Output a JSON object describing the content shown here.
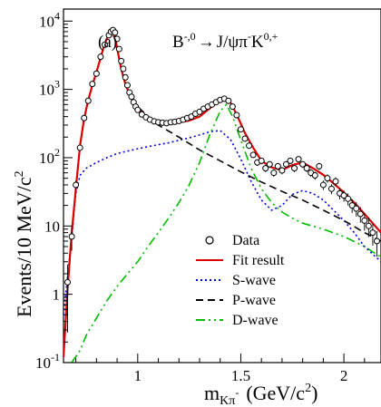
{
  "chart_data": {
    "type": "line",
    "panel_label": "(a)",
    "title_parts": {
      "main": "B",
      "sup1": "-,0",
      "arrow": "→",
      "mid": "J/ψπ",
      "sup2": "-",
      "end": "K",
      "sup3": "0,+"
    },
    "xlabel": {
      "main": "m",
      "sub": "Kπ",
      "subsup": "-",
      "unit": "(GeV/c",
      "unitsup": "2",
      "close": ")"
    },
    "ylabel": {
      "main": "Events/10 MeV/c",
      "sup": "2"
    },
    "xlim": [
      0.64,
      2.18
    ],
    "ylim": [
      0.1,
      15000
    ],
    "y_scale": "log",
    "x_ticks": [
      {
        "v": 1,
        "label": "1"
      },
      {
        "v": 1.5,
        "label": "1.5"
      },
      {
        "v": 2,
        "label": "2"
      }
    ],
    "y_ticks": [
      {
        "v": 0.1,
        "base": "10",
        "exp": "-1"
      },
      {
        "v": 1,
        "base": "1",
        "exp": ""
      },
      {
        "v": 10,
        "base": "10",
        "exp": ""
      },
      {
        "v": 100,
        "base": "10",
        "exp": "2"
      },
      {
        "v": 1000,
        "base": "10",
        "exp": "3"
      },
      {
        "v": 10000,
        "base": "10",
        "exp": "4"
      }
    ],
    "legend": [
      {
        "label": "Data",
        "style": "marker"
      },
      {
        "label": "Fit result",
        "color": "#dd0000",
        "dash": ""
      },
      {
        "label": "S-wave",
        "color": "#0000dd",
        "dash": "2,3"
      },
      {
        "label": "P-wave",
        "color": "#000000",
        "dash": "8,5"
      },
      {
        "label": "D-wave",
        "color": "#00bb00",
        "dash": "10,4,2,4,2,4"
      }
    ],
    "legend_position": "lower-center",
    "series": [
      {
        "name": "Fit result",
        "color": "#dd0000",
        "x": [
          0.64,
          0.66,
          0.68,
          0.7,
          0.72,
          0.74,
          0.76,
          0.78,
          0.8,
          0.82,
          0.84,
          0.86,
          0.88,
          0.89,
          0.9,
          0.92,
          0.94,
          0.96,
          1.0,
          1.05,
          1.1,
          1.15,
          1.2,
          1.25,
          1.3,
          1.35,
          1.38,
          1.41,
          1.43,
          1.45,
          1.48,
          1.52,
          1.56,
          1.6,
          1.65,
          1.7,
          1.75,
          1.8,
          1.85,
          1.9,
          1.95,
          2.0,
          2.05,
          2.1,
          2.18
        ],
        "y": [
          0.12,
          1.2,
          8,
          35,
          150,
          370,
          700,
          1150,
          1800,
          2900,
          4700,
          6500,
          6800,
          6000,
          4000,
          2000,
          1200,
          850,
          520,
          380,
          340,
          320,
          330,
          350,
          400,
          530,
          630,
          720,
          720,
          640,
          430,
          230,
          140,
          90,
          72,
          66,
          78,
          85,
          70,
          56,
          42,
          31,
          22,
          15,
          8
        ]
      },
      {
        "name": "S-wave",
        "color": "#0000dd",
        "x": [
          0.64,
          0.68,
          0.7,
          0.72,
          0.75,
          0.8,
          0.85,
          0.9,
          0.95,
          1.0,
          1.05,
          1.1,
          1.15,
          1.2,
          1.25,
          1.3,
          1.35,
          1.4,
          1.45,
          1.5,
          1.55,
          1.6,
          1.65,
          1.7,
          1.75,
          1.8,
          1.85,
          1.9,
          1.95,
          2.0,
          2.05,
          2.1,
          2.18
        ],
        "y": [
          0.5,
          7,
          30,
          55,
          70,
          85,
          100,
          115,
          125,
          135,
          145,
          155,
          165,
          180,
          195,
          215,
          240,
          250,
          185,
          95,
          45,
          24,
          17,
          20,
          29,
          33,
          30,
          24,
          17,
          12,
          8,
          5,
          3
        ]
      },
      {
        "name": "P-wave",
        "color": "#000000",
        "x": [
          0.64,
          0.66,
          0.68,
          0.7,
          0.72,
          0.74,
          0.76,
          0.78,
          0.8,
          0.82,
          0.84,
          0.86,
          0.88,
          0.89,
          0.9,
          0.92,
          0.94,
          0.96,
          1.0,
          1.05,
          1.1,
          1.2,
          1.3,
          1.4,
          1.5,
          1.6,
          1.7,
          1.8,
          1.9,
          2.0,
          2.1,
          2.18
        ],
        "y": [
          0.12,
          1.2,
          8,
          35,
          150,
          370,
          700,
          1150,
          1800,
          2900,
          4700,
          6500,
          6800,
          6000,
          4000,
          2000,
          1200,
          850,
          560,
          400,
          300,
          200,
          130,
          90,
          62,
          44,
          32,
          24,
          17,
          12,
          8,
          6
        ]
      },
      {
        "name": "D-wave",
        "color": "#00bb00",
        "x": [
          0.68,
          0.72,
          0.75,
          0.8,
          0.85,
          0.9,
          0.95,
          1.0,
          1.05,
          1.1,
          1.15,
          1.2,
          1.25,
          1.3,
          1.35,
          1.4,
          1.43,
          1.46,
          1.5,
          1.55,
          1.6,
          1.65,
          1.7,
          1.75,
          1.8,
          1.9,
          2.0,
          2.1,
          2.18
        ],
        "y": [
          0.1,
          0.15,
          0.25,
          0.45,
          0.8,
          1.3,
          2,
          3,
          5,
          8,
          13,
          22,
          40,
          85,
          220,
          480,
          600,
          400,
          180,
          70,
          35,
          22,
          16,
          13,
          11,
          9,
          7,
          5,
          3.5
        ]
      }
    ],
    "data_points": {
      "name": "Data",
      "x": [
        0.66,
        0.68,
        0.7,
        0.72,
        0.74,
        0.76,
        0.78,
        0.8,
        0.82,
        0.84,
        0.86,
        0.87,
        0.88,
        0.89,
        0.9,
        0.91,
        0.92,
        0.93,
        0.94,
        0.95,
        0.96,
        0.97,
        0.98,
        0.99,
        1.0,
        1.02,
        1.04,
        1.06,
        1.08,
        1.1,
        1.12,
        1.14,
        1.16,
        1.18,
        1.2,
        1.22,
        1.24,
        1.26,
        1.28,
        1.3,
        1.32,
        1.34,
        1.36,
        1.38,
        1.4,
        1.42,
        1.44,
        1.46,
        1.48,
        1.5,
        1.52,
        1.54,
        1.56,
        1.58,
        1.6,
        1.62,
        1.64,
        1.66,
        1.68,
        1.7,
        1.72,
        1.74,
        1.76,
        1.78,
        1.8,
        1.82,
        1.84,
        1.86,
        1.88,
        1.9,
        1.92,
        1.94,
        1.96,
        1.98,
        2.0,
        2.02,
        2.04,
        2.06,
        2.08,
        2.1,
        2.12,
        2.14,
        2.16
      ],
      "y": [
        1.5,
        7,
        40,
        140,
        380,
        680,
        1200,
        1700,
        3000,
        4500,
        6200,
        7000,
        7400,
        6800,
        5500,
        3900,
        2600,
        2000,
        1500,
        1150,
        900,
        780,
        650,
        560,
        500,
        430,
        390,
        360,
        340,
        330,
        325,
        320,
        330,
        335,
        345,
        360,
        380,
        400,
        440,
        470,
        520,
        560,
        600,
        650,
        700,
        730,
        680,
        560,
        420,
        260,
        190,
        150,
        110,
        85,
        90,
        70,
        80,
        60,
        75,
        65,
        80,
        90,
        70,
        95,
        80,
        70,
        60,
        55,
        75,
        40,
        50,
        35,
        45,
        30,
        28,
        25,
        20,
        18,
        15,
        12,
        10,
        8,
        6
      ]
    }
  }
}
